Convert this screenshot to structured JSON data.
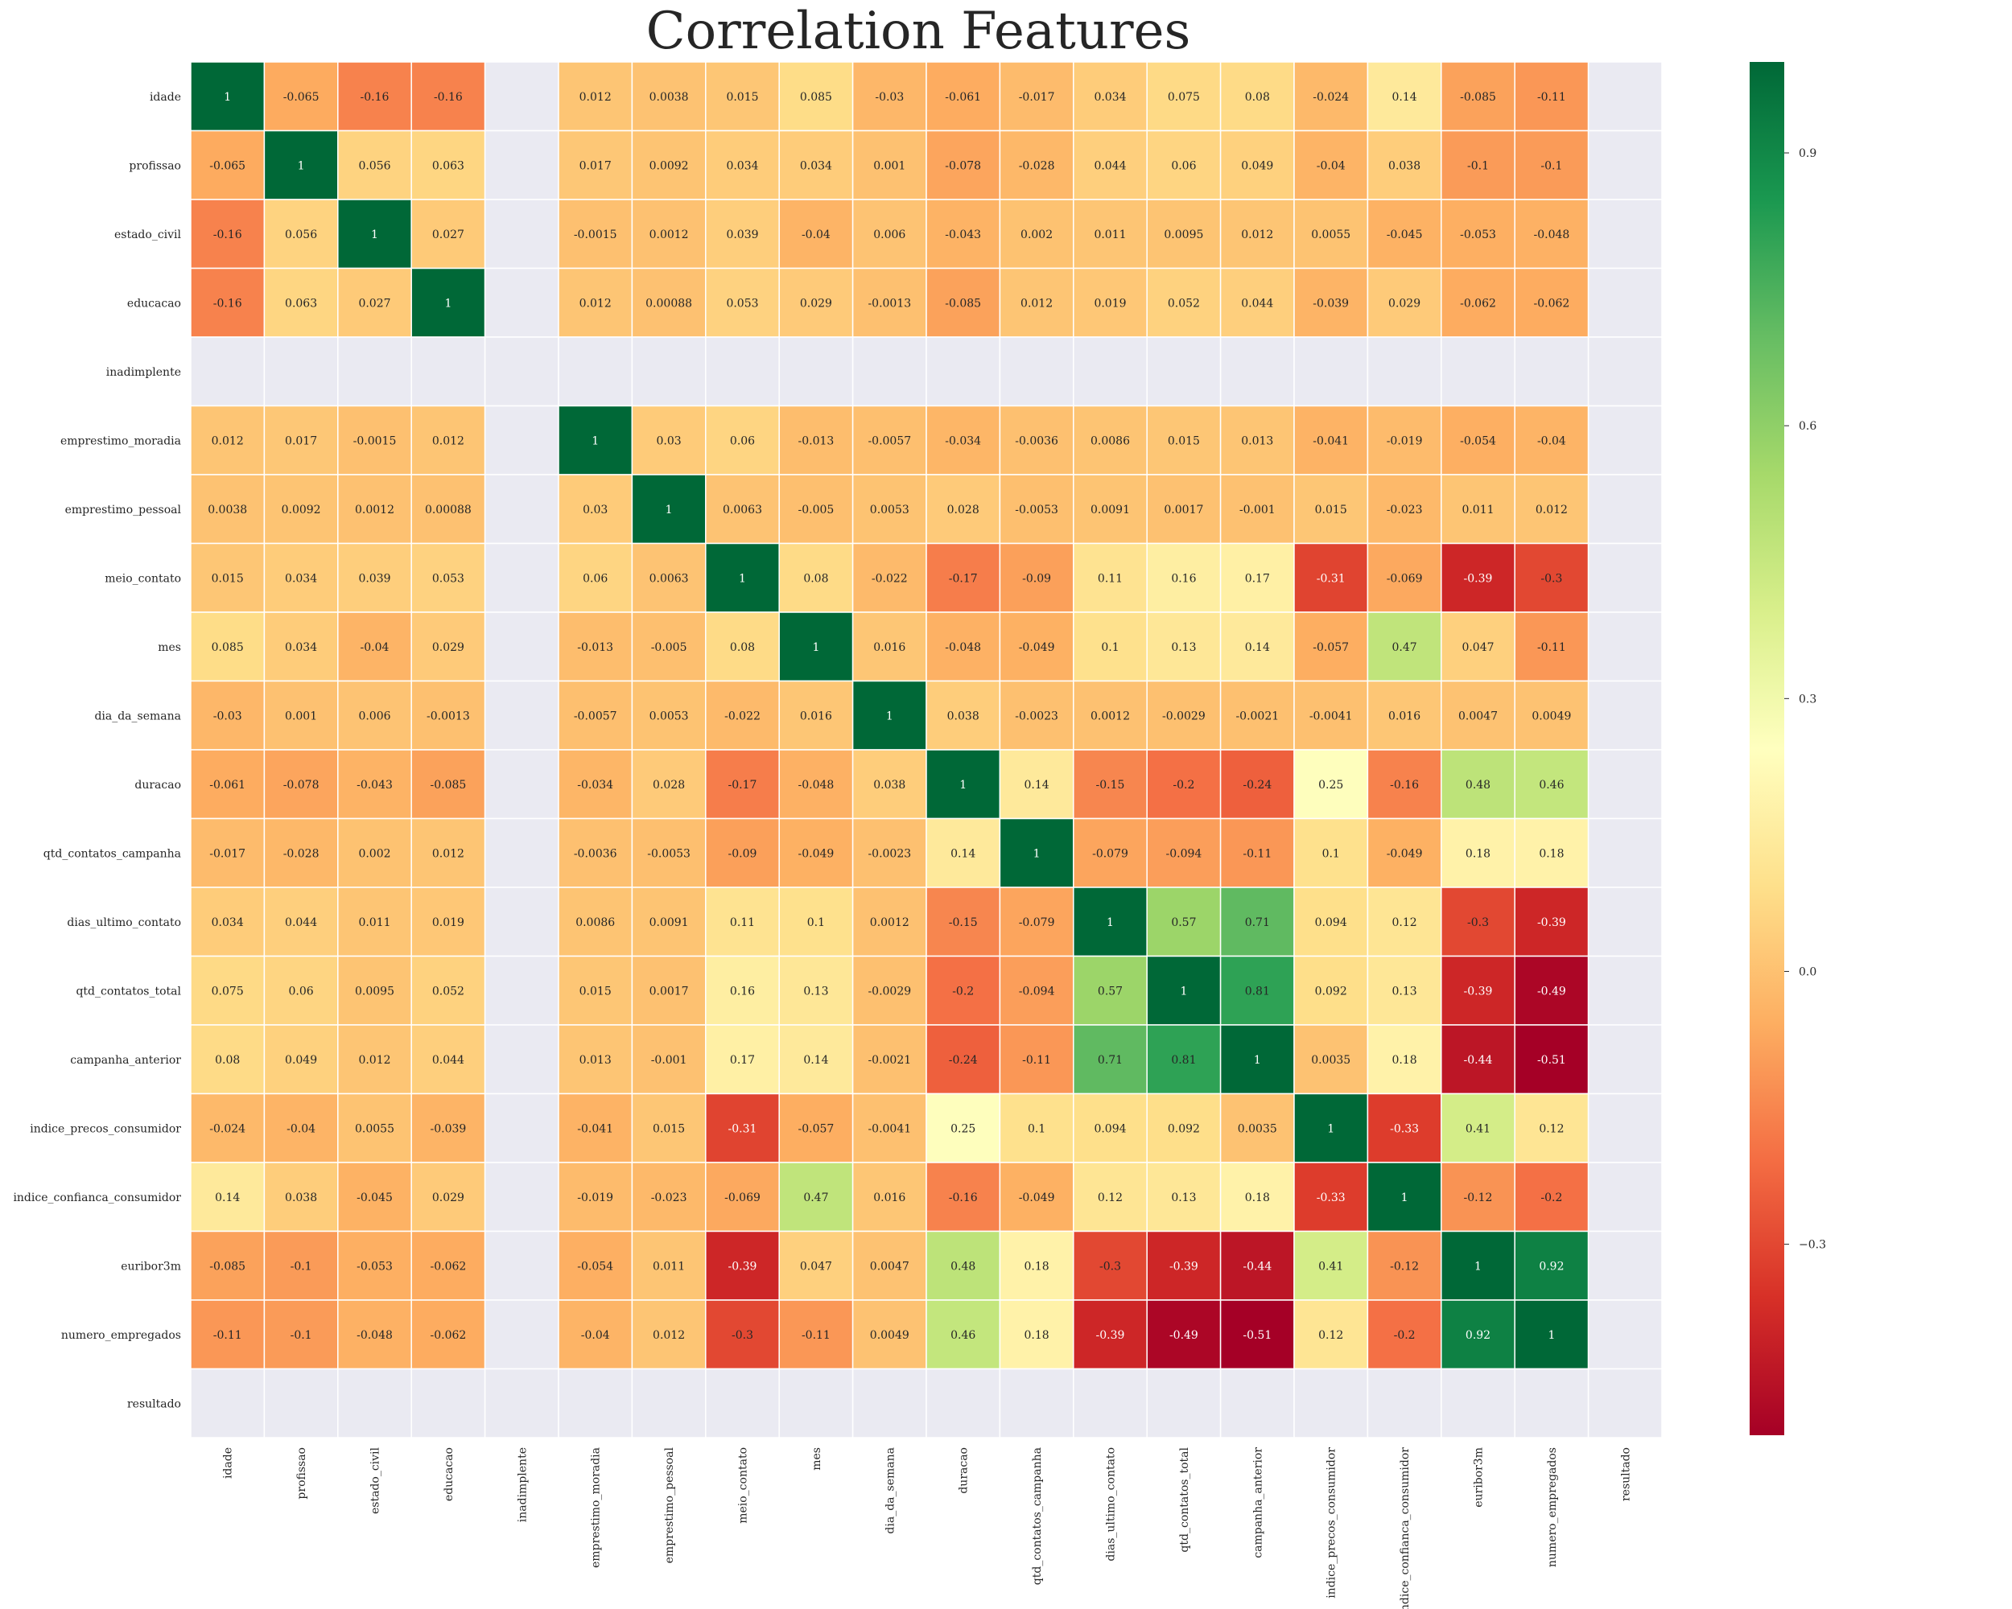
{
  "chart_data": {
    "type": "heatmap",
    "title": "Correlation Features",
    "labels": [
      "idade",
      "profissao",
      "estado_civil",
      "educacao",
      "inadimplente",
      "emprestimo_moradia",
      "emprestimo_pessoal",
      "meio_contato",
      "mes",
      "dia_da_semana",
      "duracao",
      "qtd_contatos_campanha",
      "dias_ultimo_contato",
      "qtd_contatos_total",
      "campanha_anterior",
      "indice_precos_consumidor",
      "indice_confianca_consumidor",
      "euribor3m",
      "numero_empregados",
      "resultado"
    ],
    "matrix": [
      [
        "1",
        "-0.065",
        "-0.16",
        "-0.16",
        null,
        "0.012",
        "0.0038",
        "0.015",
        "0.085",
        "-0.03",
        "-0.061",
        "-0.017",
        "0.034",
        "0.075",
        "0.08",
        "-0.024",
        "0.14",
        "-0.085",
        "-0.11",
        null
      ],
      [
        "-0.065",
        "1",
        "0.056",
        "0.063",
        null,
        "0.017",
        "0.0092",
        "0.034",
        "0.034",
        "0.001",
        "-0.078",
        "-0.028",
        "0.044",
        "0.06",
        "0.049",
        "-0.04",
        "0.038",
        "-0.1",
        "-0.1",
        null
      ],
      [
        "-0.16",
        "0.056",
        "1",
        "0.027",
        null,
        "-0.0015",
        "0.0012",
        "0.039",
        "-0.04",
        "0.006",
        "-0.043",
        "0.002",
        "0.011",
        "0.0095",
        "0.012",
        "0.0055",
        "-0.045",
        "-0.053",
        "-0.048",
        null
      ],
      [
        "-0.16",
        "0.063",
        "0.027",
        "1",
        null,
        "0.012",
        "0.00088",
        "0.053",
        "0.029",
        "-0.0013",
        "-0.085",
        "0.012",
        "0.019",
        "0.052",
        "0.044",
        "-0.039",
        "0.029",
        "-0.062",
        "-0.062",
        null
      ],
      [
        null,
        null,
        null,
        null,
        null,
        null,
        null,
        null,
        null,
        null,
        null,
        null,
        null,
        null,
        null,
        null,
        null,
        null,
        null,
        null
      ],
      [
        "0.012",
        "0.017",
        "-0.0015",
        "0.012",
        null,
        "1",
        "0.03",
        "0.06",
        "-0.013",
        "-0.0057",
        "-0.034",
        "-0.0036",
        "0.0086",
        "0.015",
        "0.013",
        "-0.041",
        "-0.019",
        "-0.054",
        "-0.04",
        null
      ],
      [
        "0.0038",
        "0.0092",
        "0.0012",
        "0.00088",
        null,
        "0.03",
        "1",
        "0.0063",
        "-0.005",
        "0.0053",
        "0.028",
        "-0.0053",
        "0.0091",
        "0.0017",
        "-0.001",
        "0.015",
        "-0.023",
        "0.011",
        "0.012",
        null
      ],
      [
        "0.015",
        "0.034",
        "0.039",
        "0.053",
        null,
        "0.06",
        "0.0063",
        "1",
        "0.08",
        "-0.022",
        "-0.17",
        "-0.09",
        "0.11",
        "0.16",
        "0.17",
        "-0.31",
        "-0.069",
        "-0.39",
        "-0.3",
        null
      ],
      [
        "0.085",
        "0.034",
        "-0.04",
        "0.029",
        null,
        "-0.013",
        "-0.005",
        "0.08",
        "1",
        "0.016",
        "-0.048",
        "-0.049",
        "0.1",
        "0.13",
        "0.14",
        "-0.057",
        "0.47",
        "0.047",
        "-0.11",
        null
      ],
      [
        "-0.03",
        "0.001",
        "0.006",
        "-0.0013",
        null,
        "-0.0057",
        "0.0053",
        "-0.022",
        "0.016",
        "1",
        "0.038",
        "-0.0023",
        "0.0012",
        "-0.0029",
        "-0.0021",
        "-0.0041",
        "0.016",
        "0.0047",
        "0.0049",
        null
      ],
      [
        "-0.061",
        "-0.078",
        "-0.043",
        "-0.085",
        null,
        "-0.034",
        "0.028",
        "-0.17",
        "-0.048",
        "0.038",
        "1",
        "0.14",
        "-0.15",
        "-0.2",
        "-0.24",
        "0.25",
        "-0.16",
        "0.48",
        "0.46",
        null
      ],
      [
        "-0.017",
        "-0.028",
        "0.002",
        "0.012",
        null,
        "-0.0036",
        "-0.0053",
        "-0.09",
        "-0.049",
        "-0.0023",
        "0.14",
        "1",
        "-0.079",
        "-0.094",
        "-0.11",
        "0.1",
        "-0.049",
        "0.18",
        "0.18",
        null
      ],
      [
        "0.034",
        "0.044",
        "0.011",
        "0.019",
        null,
        "0.0086",
        "0.0091",
        "0.11",
        "0.1",
        "0.0012",
        "-0.15",
        "-0.079",
        "1",
        "0.57",
        "0.71",
        "0.094",
        "0.12",
        "-0.3",
        "-0.39",
        null
      ],
      [
        "0.075",
        "0.06",
        "0.0095",
        "0.052",
        null,
        "0.015",
        "0.0017",
        "0.16",
        "0.13",
        "-0.0029",
        "-0.2",
        "-0.094",
        "0.57",
        "1",
        "0.81",
        "0.092",
        "0.13",
        "-0.39",
        "-0.49",
        null
      ],
      [
        "0.08",
        "0.049",
        "0.012",
        "0.044",
        null,
        "0.013",
        "-0.001",
        "0.17",
        "0.14",
        "-0.0021",
        "-0.24",
        "-0.11",
        "0.71",
        "0.81",
        "1",
        "0.0035",
        "0.18",
        "-0.44",
        "-0.51",
        null
      ],
      [
        "-0.024",
        "-0.04",
        "0.0055",
        "-0.039",
        null,
        "-0.041",
        "0.015",
        "-0.31",
        "-0.057",
        "-0.0041",
        "0.25",
        "0.1",
        "0.094",
        "0.092",
        "0.0035",
        "1",
        "-0.33",
        "0.41",
        "0.12",
        null
      ],
      [
        "0.14",
        "0.038",
        "-0.045",
        "0.029",
        null,
        "-0.019",
        "-0.023",
        "-0.069",
        "0.47",
        "0.016",
        "-0.16",
        "-0.049",
        "0.12",
        "0.13",
        "0.18",
        "-0.33",
        "1",
        "-0.12",
        "-0.2",
        null
      ],
      [
        "-0.085",
        "-0.1",
        "-0.053",
        "-0.062",
        null,
        "-0.054",
        "0.011",
        "-0.39",
        "0.047",
        "0.0047",
        "0.48",
        "0.18",
        "-0.3",
        "-0.39",
        "-0.44",
        "0.41",
        "-0.12",
        "1",
        "0.92",
        null
      ],
      [
        "-0.11",
        "-0.1",
        "-0.048",
        "-0.062",
        null,
        "-0.04",
        "0.012",
        "-0.3",
        "-0.11",
        "0.0049",
        "0.46",
        "0.18",
        "-0.39",
        "-0.49",
        "-0.51",
        "0.12",
        "-0.2",
        "0.92",
        "1",
        null
      ],
      [
        null,
        null,
        null,
        null,
        null,
        null,
        null,
        null,
        null,
        null,
        null,
        null,
        null,
        null,
        null,
        null,
        null,
        null,
        null,
        null
      ]
    ],
    "colormap": "RdYlGn",
    "color_range": [
      -0.51,
      1
    ],
    "colorbar_ticks": [
      "0.9",
      "0.6",
      "0.3",
      "0.0",
      "−0.3"
    ],
    "colorbar_tick_values": [
      0.9,
      0.6,
      0.3,
      0.0,
      -0.3
    ],
    "missing_cell_color": "#eaeaf2",
    "grid": false,
    "colorbar_position": "right"
  }
}
